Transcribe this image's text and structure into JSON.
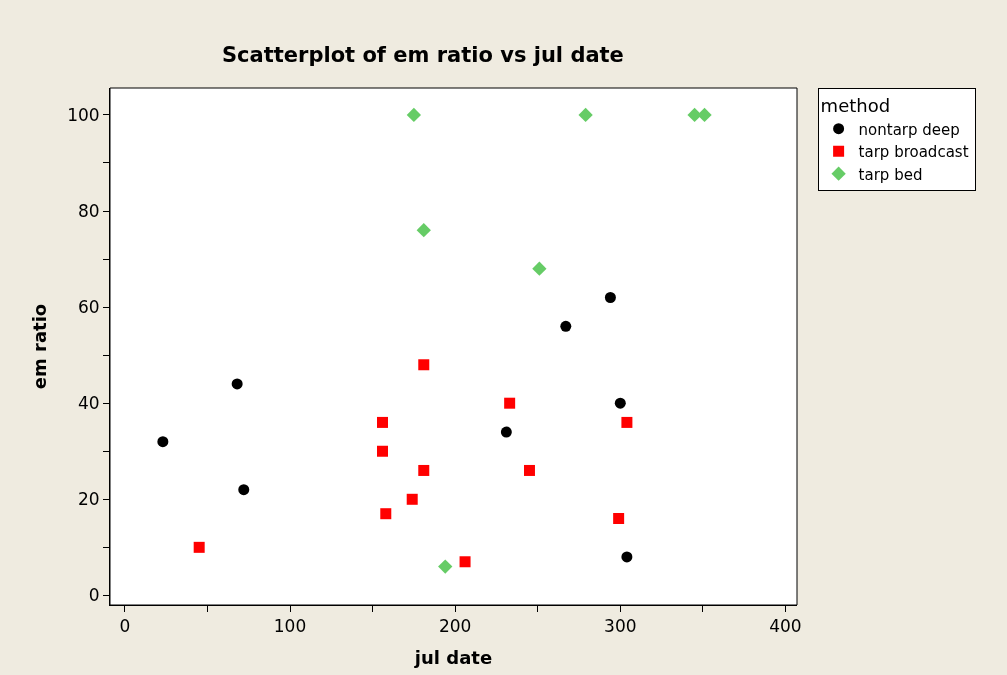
{
  "chart_data": {
    "type": "scatter",
    "title": "Scatterplot of em ratio vs jul date",
    "xlabel": "jul date",
    "ylabel": "em ratio",
    "legend_title": "method",
    "legend": "top right",
    "xlim": [
      -9,
      407
    ],
    "ylim": [
      -2,
      105.6
    ],
    "xticks": [
      0,
      {
        "value": 50,
        "label": null
      },
      100,
      {
        "value": 150,
        "label": null
      },
      200,
      {
        "value": 250,
        "label": null
      },
      300,
      {
        "value": 350,
        "label": null
      },
      400
    ],
    "yticks": [
      0,
      {
        "value": 10,
        "label": null
      },
      20,
      {
        "value": 30,
        "label": null
      },
      40,
      {
        "value": 50,
        "label": null
      },
      60,
      {
        "value": 70,
        "label": null
      },
      80,
      {
        "value": 90,
        "label": null
      },
      100
    ],
    "series": [
      {
        "name": "nontarp deep",
        "color": "#000000",
        "marker": "circle",
        "x": [
          23,
          68,
          72,
          231,
          267,
          294,
          300,
          304
        ],
        "values": [
          32,
          44,
          22,
          34,
          56,
          62,
          40,
          8
        ]
      },
      {
        "name": "tarp broadcast",
        "color": "#ff0000",
        "marker": "square",
        "x": [
          45,
          156,
          156,
          158,
          174,
          181,
          181,
          206,
          233,
          245,
          299,
          304
        ],
        "values": [
          10,
          36,
          30,
          17,
          20,
          48,
          26,
          7,
          40,
          26,
          16,
          36
        ]
      },
      {
        "name": "tarp bed",
        "color": "#66cc66",
        "marker": "diamond",
        "x": [
          175,
          181,
          194,
          251,
          279,
          345,
          351
        ],
        "values": [
          100,
          76,
          6,
          68,
          100,
          100,
          100
        ]
      }
    ]
  }
}
